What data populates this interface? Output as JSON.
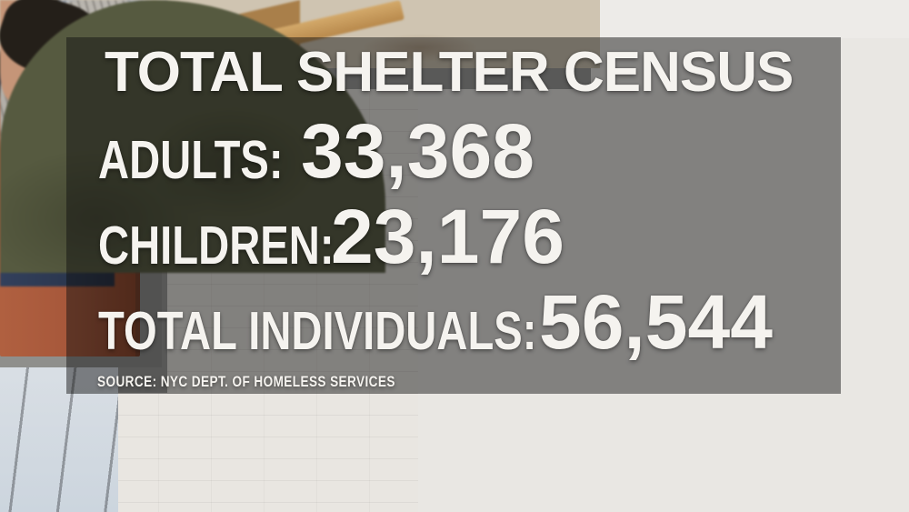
{
  "graphic": {
    "title": "TOTAL SHELTER CENSUS",
    "rows": [
      {
        "label": "ADULTS:",
        "value": "33,368"
      },
      {
        "label": "CHILDREN:",
        "value": "23,176"
      },
      {
        "label": "TOTAL INDIVIDUALS:",
        "value": "56,544"
      }
    ],
    "source": "SOURCE: NYC DEPT. OF HOMELESS SERVICES",
    "colors": {
      "panel_overlay": "rgba(15,15,15,0.47)",
      "text": "#f5f3ef"
    }
  },
  "scene": {
    "colors": {
      "door": "#a6573a",
      "gray_wall": "#9c9c99",
      "brick_wall": "#e9e6e1",
      "bench_wood": "#c59a5c",
      "foreground_jacket": "#565a40"
    }
  }
}
